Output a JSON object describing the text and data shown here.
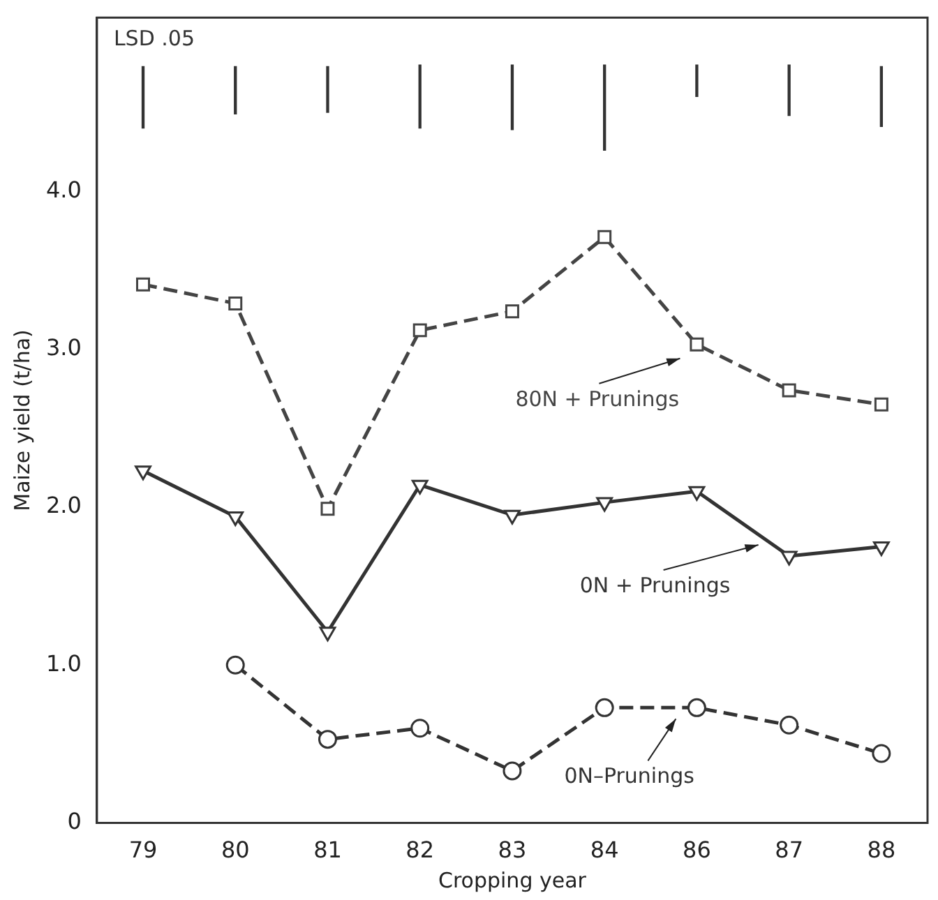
{
  "chart_data": {
    "type": "line",
    "xlabel": "Cropping year",
    "ylabel": "Maize yield (t/ha)",
    "categories": [
      "79",
      "80",
      "81",
      "82",
      "83",
      "84",
      "86",
      "87",
      "88"
    ],
    "ylim": [
      0,
      5.1
    ],
    "yticks": [
      0,
      {
        "value": 1,
        "label": "1.0"
      },
      {
        "value": 2,
        "label": "2.0"
      },
      {
        "value": 3,
        "label": "3.0"
      },
      {
        "value": 4,
        "label": "4.0"
      }
    ],
    "grid": false,
    "legend": false,
    "series": [
      {
        "name": "LSD .05",
        "type": "bar",
        "color": "#333333",
        "base": [
          4.4,
          4.49,
          4.5,
          4.4,
          4.39,
          4.26,
          4.6,
          4.48,
          4.41
        ],
        "values": [
          0.39,
          0.3,
          0.29,
          0.4,
          0.41,
          0.54,
          0.2,
          0.32,
          0.38
        ]
      },
      {
        "name": "80N + Prunings",
        "marker": "square",
        "line_style": "dashed",
        "color": "#444444",
        "values": [
          3.41,
          3.29,
          1.99,
          3.12,
          3.24,
          3.71,
          3.03,
          2.74,
          2.65
        ]
      },
      {
        "name": "0N + Prunings",
        "marker": "triangle",
        "line_style": "solid",
        "color": "#333333",
        "values": [
          2.23,
          1.94,
          1.21,
          2.14,
          1.95,
          2.03,
          2.1,
          1.69,
          1.75
        ]
      },
      {
        "name": "0N–Prunings",
        "marker": "circle",
        "line_style": "dashed",
        "color": "#333333",
        "values": [
          null,
          1.0,
          0.53,
          0.6,
          0.33,
          0.73,
          0.73,
          0.62,
          0.44
        ]
      }
    ]
  }
}
